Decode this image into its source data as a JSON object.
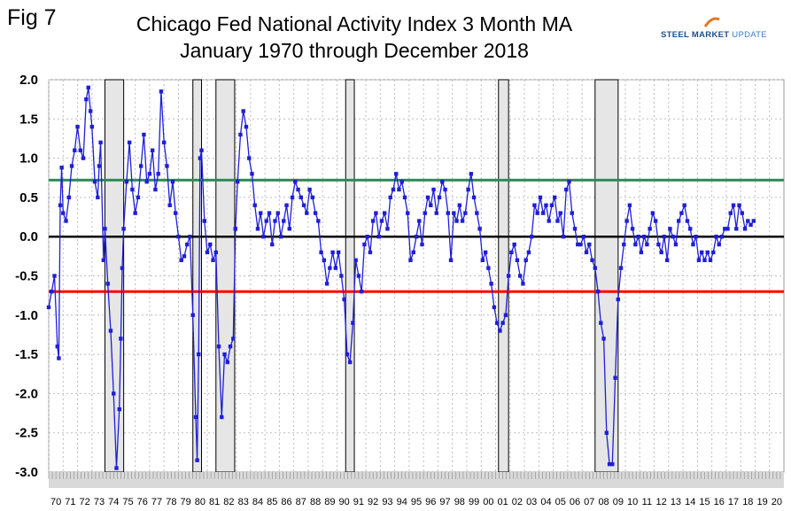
{
  "figure_label": "Fig 7",
  "logo": {
    "word1": "STEEL",
    "word2": "MARKET",
    "word3": "UPDATE"
  },
  "chart_data": {
    "type": "line",
    "title": "Chicago Fed National Activity Index 3 Month MA",
    "subtitle": "January 1970 through December 2018",
    "ylim": [
      -3.0,
      2.0
    ],
    "yticks": [
      "2.0",
      "1.5",
      "1.0",
      "0.5",
      "0.0",
      "-0.5",
      "-1.0",
      "-1.5",
      "-2.0",
      "-2.5",
      "-3.0"
    ],
    "xlim": [
      1970,
      2021
    ],
    "xticks": [
      "70",
      "71",
      "72",
      "73",
      "74",
      "75",
      "76",
      "77",
      "78",
      "79",
      "80",
      "81",
      "82",
      "83",
      "84",
      "85",
      "86",
      "87",
      "88",
      "89",
      "90",
      "91",
      "92",
      "93",
      "94",
      "95",
      "96",
      "97",
      "98",
      "99",
      "00",
      "01",
      "02",
      "03",
      "04",
      "05",
      "06",
      "07",
      "08",
      "09",
      "10",
      "11",
      "12",
      "13",
      "14",
      "15",
      "16",
      "17",
      "18",
      "19",
      "20"
    ],
    "reference_lines": [
      {
        "name": "upper",
        "value": 0.72,
        "color": "#2e8b57"
      },
      {
        "name": "zero",
        "value": 0.0,
        "color": "#000000"
      },
      {
        "name": "lower",
        "value": -0.7,
        "color": "#ff0000"
      }
    ],
    "recessions": [
      [
        1973.9,
        1975.2
      ],
      [
        1980.0,
        1980.6
      ],
      [
        1981.6,
        1982.9
      ],
      [
        1990.6,
        1991.2
      ],
      [
        2001.2,
        2001.9
      ],
      [
        2007.9,
        2009.5
      ]
    ],
    "series_color": "#1f1fd6",
    "series": [
      {
        "name": "CFNAI 3 Month MA",
        "points": [
          [
            1970.0,
            -0.9
          ],
          [
            1970.2,
            -0.7
          ],
          [
            1970.4,
            -0.5
          ],
          [
            1970.6,
            -1.4
          ],
          [
            1970.7,
            -1.55
          ],
          [
            1970.8,
            0.4
          ],
          [
            1970.9,
            0.88
          ],
          [
            1971.0,
            0.3
          ],
          [
            1971.2,
            0.2
          ],
          [
            1971.4,
            0.5
          ],
          [
            1971.6,
            0.9
          ],
          [
            1971.8,
            1.1
          ],
          [
            1972.0,
            1.4
          ],
          [
            1972.2,
            1.1
          ],
          [
            1972.4,
            1.0
          ],
          [
            1972.6,
            1.75
          ],
          [
            1972.75,
            1.9
          ],
          [
            1972.9,
            1.6
          ],
          [
            1973.0,
            1.4
          ],
          [
            1973.2,
            0.7
          ],
          [
            1973.4,
            0.5
          ],
          [
            1973.5,
            0.9
          ],
          [
            1973.6,
            1.2
          ],
          [
            1973.8,
            -0.3
          ],
          [
            1973.9,
            0.1
          ],
          [
            1974.1,
            -0.6
          ],
          [
            1974.3,
            -1.2
          ],
          [
            1974.5,
            -2.0
          ],
          [
            1974.7,
            -2.95
          ],
          [
            1974.9,
            -2.2
          ],
          [
            1975.0,
            -1.3
          ],
          [
            1975.1,
            -0.4
          ],
          [
            1975.2,
            0.1
          ],
          [
            1975.4,
            0.7
          ],
          [
            1975.6,
            1.2
          ],
          [
            1975.8,
            0.6
          ],
          [
            1976.0,
            0.3
          ],
          [
            1976.2,
            0.5
          ],
          [
            1976.4,
            0.9
          ],
          [
            1976.6,
            1.3
          ],
          [
            1976.8,
            0.7
          ],
          [
            1977.0,
            0.8
          ],
          [
            1977.2,
            1.1
          ],
          [
            1977.4,
            0.6
          ],
          [
            1977.6,
            0.8
          ],
          [
            1977.8,
            1.85
          ],
          [
            1978.0,
            1.2
          ],
          [
            1978.2,
            0.9
          ],
          [
            1978.4,
            0.4
          ],
          [
            1978.6,
            0.7
          ],
          [
            1978.8,
            0.3
          ],
          [
            1979.0,
            0.0
          ],
          [
            1979.2,
            -0.3
          ],
          [
            1979.4,
            -0.25
          ],
          [
            1979.6,
            -0.1
          ],
          [
            1979.8,
            0.0
          ],
          [
            1980.0,
            -1.0
          ],
          [
            1980.2,
            -2.3
          ],
          [
            1980.3,
            -2.85
          ],
          [
            1980.4,
            -1.5
          ],
          [
            1980.5,
            1.0
          ],
          [
            1980.6,
            1.1
          ],
          [
            1980.8,
            0.2
          ],
          [
            1981.0,
            -0.2
          ],
          [
            1981.2,
            -0.1
          ],
          [
            1981.4,
            -0.3
          ],
          [
            1981.6,
            -0.2
          ],
          [
            1981.8,
            -1.4
          ],
          [
            1982.0,
            -2.3
          ],
          [
            1982.2,
            -1.5
          ],
          [
            1982.4,
            -1.6
          ],
          [
            1982.6,
            -1.4
          ],
          [
            1982.8,
            -1.3
          ],
          [
            1982.95,
            0.1
          ],
          [
            1983.1,
            0.7
          ],
          [
            1983.3,
            1.3
          ],
          [
            1983.5,
            1.6
          ],
          [
            1983.7,
            1.4
          ],
          [
            1983.9,
            1.0
          ],
          [
            1984.1,
            0.8
          ],
          [
            1984.3,
            0.4
          ],
          [
            1984.5,
            0.1
          ],
          [
            1984.7,
            0.3
          ],
          [
            1984.9,
            0.0
          ],
          [
            1985.1,
            0.2
          ],
          [
            1985.3,
            0.3
          ],
          [
            1985.5,
            -0.1
          ],
          [
            1985.7,
            0.2
          ],
          [
            1985.9,
            0.3
          ],
          [
            1986.1,
            0.0
          ],
          [
            1986.3,
            0.2
          ],
          [
            1986.5,
            0.4
          ],
          [
            1986.7,
            0.1
          ],
          [
            1986.9,
            0.5
          ],
          [
            1987.1,
            0.7
          ],
          [
            1987.3,
            0.6
          ],
          [
            1987.5,
            0.5
          ],
          [
            1987.7,
            0.4
          ],
          [
            1987.9,
            0.3
          ],
          [
            1988.1,
            0.6
          ],
          [
            1988.3,
            0.5
          ],
          [
            1988.5,
            0.3
          ],
          [
            1988.7,
            0.2
          ],
          [
            1988.9,
            -0.2
          ],
          [
            1989.1,
            -0.3
          ],
          [
            1989.3,
            -0.6
          ],
          [
            1989.5,
            -0.4
          ],
          [
            1989.7,
            -0.2
          ],
          [
            1989.9,
            -0.4
          ],
          [
            1990.1,
            -0.2
          ],
          [
            1990.3,
            -0.5
          ],
          [
            1990.5,
            -0.8
          ],
          [
            1990.7,
            -1.5
          ],
          [
            1990.9,
            -1.6
          ],
          [
            1991.1,
            -1.1
          ],
          [
            1991.3,
            -0.3
          ],
          [
            1991.5,
            -0.5
          ],
          [
            1991.7,
            -0.7
          ],
          [
            1991.9,
            -0.1
          ],
          [
            1992.1,
            0.0
          ],
          [
            1992.3,
            -0.2
          ],
          [
            1992.5,
            0.2
          ],
          [
            1992.7,
            0.3
          ],
          [
            1992.9,
            0.0
          ],
          [
            1993.1,
            0.2
          ],
          [
            1993.3,
            0.3
          ],
          [
            1993.5,
            0.1
          ],
          [
            1993.7,
            0.5
          ],
          [
            1993.9,
            0.6
          ],
          [
            1994.1,
            0.8
          ],
          [
            1994.3,
            0.6
          ],
          [
            1994.5,
            0.7
          ],
          [
            1994.7,
            0.5
          ],
          [
            1994.9,
            0.3
          ],
          [
            1995.1,
            -0.3
          ],
          [
            1995.3,
            -0.2
          ],
          [
            1995.5,
            0.0
          ],
          [
            1995.7,
            0.2
          ],
          [
            1995.9,
            -0.1
          ],
          [
            1996.1,
            0.3
          ],
          [
            1996.3,
            0.5
          ],
          [
            1996.5,
            0.4
          ],
          [
            1996.7,
            0.6
          ],
          [
            1996.9,
            0.3
          ],
          [
            1997.1,
            0.5
          ],
          [
            1997.3,
            0.7
          ],
          [
            1997.5,
            0.6
          ],
          [
            1997.7,
            0.3
          ],
          [
            1997.9,
            -0.3
          ],
          [
            1998.1,
            0.3
          ],
          [
            1998.3,
            0.2
          ],
          [
            1998.5,
            0.4
          ],
          [
            1998.7,
            0.2
          ],
          [
            1998.9,
            0.3
          ],
          [
            1999.1,
            0.6
          ],
          [
            1999.3,
            0.8
          ],
          [
            1999.5,
            0.5
          ],
          [
            1999.7,
            0.3
          ],
          [
            1999.9,
            0.1
          ],
          [
            2000.1,
            -0.3
          ],
          [
            2000.3,
            -0.2
          ],
          [
            2000.5,
            -0.4
          ],
          [
            2000.7,
            -0.6
          ],
          [
            2000.9,
            -0.9
          ],
          [
            2001.1,
            -1.1
          ],
          [
            2001.3,
            -1.2
          ],
          [
            2001.5,
            -1.1
          ],
          [
            2001.7,
            -1.0
          ],
          [
            2001.9,
            -0.5
          ],
          [
            2002.1,
            -0.2
          ],
          [
            2002.3,
            -0.1
          ],
          [
            2002.5,
            -0.3
          ],
          [
            2002.7,
            -0.5
          ],
          [
            2002.9,
            -0.6
          ],
          [
            2003.1,
            -0.3
          ],
          [
            2003.3,
            -0.2
          ],
          [
            2003.5,
            0.0
          ],
          [
            2003.7,
            0.4
          ],
          [
            2003.9,
            0.3
          ],
          [
            2004.1,
            0.5
          ],
          [
            2004.3,
            0.3
          ],
          [
            2004.5,
            0.4
          ],
          [
            2004.7,
            0.2
          ],
          [
            2004.9,
            0.4
          ],
          [
            2005.1,
            0.5
          ],
          [
            2005.3,
            0.2
          ],
          [
            2005.5,
            0.3
          ],
          [
            2005.7,
            0.0
          ],
          [
            2005.9,
            0.6
          ],
          [
            2006.1,
            0.7
          ],
          [
            2006.3,
            0.3
          ],
          [
            2006.5,
            0.1
          ],
          [
            2006.7,
            -0.1
          ],
          [
            2006.9,
            -0.1
          ],
          [
            2007.1,
            0.0
          ],
          [
            2007.3,
            -0.2
          ],
          [
            2007.5,
            -0.1
          ],
          [
            2007.7,
            -0.3
          ],
          [
            2007.9,
            -0.4
          ],
          [
            2008.1,
            -0.7
          ],
          [
            2008.3,
            -1.1
          ],
          [
            2008.5,
            -1.3
          ],
          [
            2008.7,
            -2.5
          ],
          [
            2008.9,
            -2.9
          ],
          [
            2009.1,
            -2.9
          ],
          [
            2009.3,
            -1.8
          ],
          [
            2009.5,
            -0.8
          ],
          [
            2009.7,
            -0.4
          ],
          [
            2009.9,
            -0.1
          ],
          [
            2010.1,
            0.2
          ],
          [
            2010.3,
            0.4
          ],
          [
            2010.5,
            0.1
          ],
          [
            2010.7,
            -0.1
          ],
          [
            2010.9,
            0.0
          ],
          [
            2011.1,
            -0.2
          ],
          [
            2011.3,
            0.0
          ],
          [
            2011.5,
            -0.1
          ],
          [
            2011.7,
            0.1
          ],
          [
            2011.9,
            0.3
          ],
          [
            2012.1,
            0.2
          ],
          [
            2012.3,
            -0.1
          ],
          [
            2012.5,
            -0.2
          ],
          [
            2012.7,
            0.0
          ],
          [
            2012.9,
            -0.3
          ],
          [
            2013.1,
            0.1
          ],
          [
            2013.3,
            0.0
          ],
          [
            2013.5,
            -0.1
          ],
          [
            2013.7,
            0.2
          ],
          [
            2013.9,
            0.3
          ],
          [
            2014.1,
            0.4
          ],
          [
            2014.3,
            0.2
          ],
          [
            2014.5,
            0.1
          ],
          [
            2014.7,
            -0.1
          ],
          [
            2014.9,
            0.0
          ],
          [
            2015.1,
            -0.3
          ],
          [
            2015.3,
            -0.2
          ],
          [
            2015.5,
            -0.3
          ],
          [
            2015.7,
            -0.2
          ],
          [
            2015.9,
            -0.3
          ],
          [
            2016.1,
            -0.2
          ],
          [
            2016.3,
            0.0
          ],
          [
            2016.5,
            -0.1
          ],
          [
            2016.7,
            0.0
          ],
          [
            2016.9,
            0.1
          ],
          [
            2017.1,
            0.1
          ],
          [
            2017.3,
            0.3
          ],
          [
            2017.5,
            0.4
          ],
          [
            2017.7,
            0.1
          ],
          [
            2017.9,
            0.4
          ],
          [
            2018.1,
            0.3
          ],
          [
            2018.3,
            0.1
          ],
          [
            2018.5,
            0.2
          ],
          [
            2018.7,
            0.15
          ],
          [
            2018.9,
            0.2
          ]
        ]
      }
    ]
  }
}
